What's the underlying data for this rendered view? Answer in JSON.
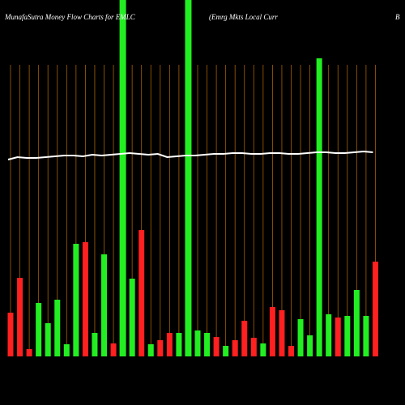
{
  "chart_data": {
    "type": "bar",
    "title": "MunafaSutra  Money Flow  Charts for EMLC",
    "subtitle": "(Emrg Mkts Local Curr",
    "corner_label": "B",
    "categories": [
      null,
      null,
      null,
      null,
      null,
      null,
      null,
      null,
      null,
      null,
      null,
      null,
      null,
      null,
      null,
      null,
      null,
      null,
      null,
      null,
      null,
      null,
      null,
      null,
      null,
      null,
      null,
      null,
      null,
      null,
      null,
      null,
      null,
      null,
      null,
      null,
      null,
      null,
      null,
      null
    ],
    "values": [
      54,
      97,
      9,
      66,
      41,
      70,
      15,
      139,
      141,
      29,
      126,
      16,
      440,
      96,
      156,
      15,
      20,
      29,
      29,
      440,
      32,
      29,
      24,
      13,
      20,
      44,
      23,
      16,
      61,
      57,
      13,
      46,
      26,
      368,
      52,
      48,
      50,
      82,
      50,
      117
    ],
    "colors": [
      "#ff2020",
      "#ff2020",
      "#ff2020",
      "#22ee22",
      "#22ee22",
      "#22ee22",
      "#22ee22",
      "#22ee22",
      "#ff2020",
      "#22ee22",
      "#22ee22",
      "#ff2020",
      "#22ee22",
      "#22ee22",
      "#ff2020",
      "#22ee22",
      "#ff2020",
      "#ff2020",
      "#22ee22",
      "#22ee22",
      "#22ee22",
      "#22ee22",
      "#ff2020",
      "#22ee22",
      "#ff2020",
      "#ff2020",
      "#ff2020",
      "#22ee22",
      "#ff2020",
      "#ff2020",
      "#ff2020",
      "#22ee22",
      "#22ee22",
      "#22ee22",
      "#22ee22",
      "#ff2020",
      "#22ee22",
      "#22ee22",
      "#22ee22",
      "#ff2020"
    ],
    "line": {
      "color": "#ffffff",
      "values": [
        243,
        246,
        245,
        245,
        246,
        247,
        248,
        248,
        247,
        249,
        248,
        249,
        250,
        251,
        250,
        249,
        250,
        246,
        247,
        248,
        248,
        249,
        250,
        250,
        251,
        251,
        250,
        250,
        251,
        251,
        250,
        250,
        251,
        252,
        252,
        251,
        251,
        252,
        253,
        252
      ]
    },
    "ylim": [
      0,
      440
    ]
  }
}
